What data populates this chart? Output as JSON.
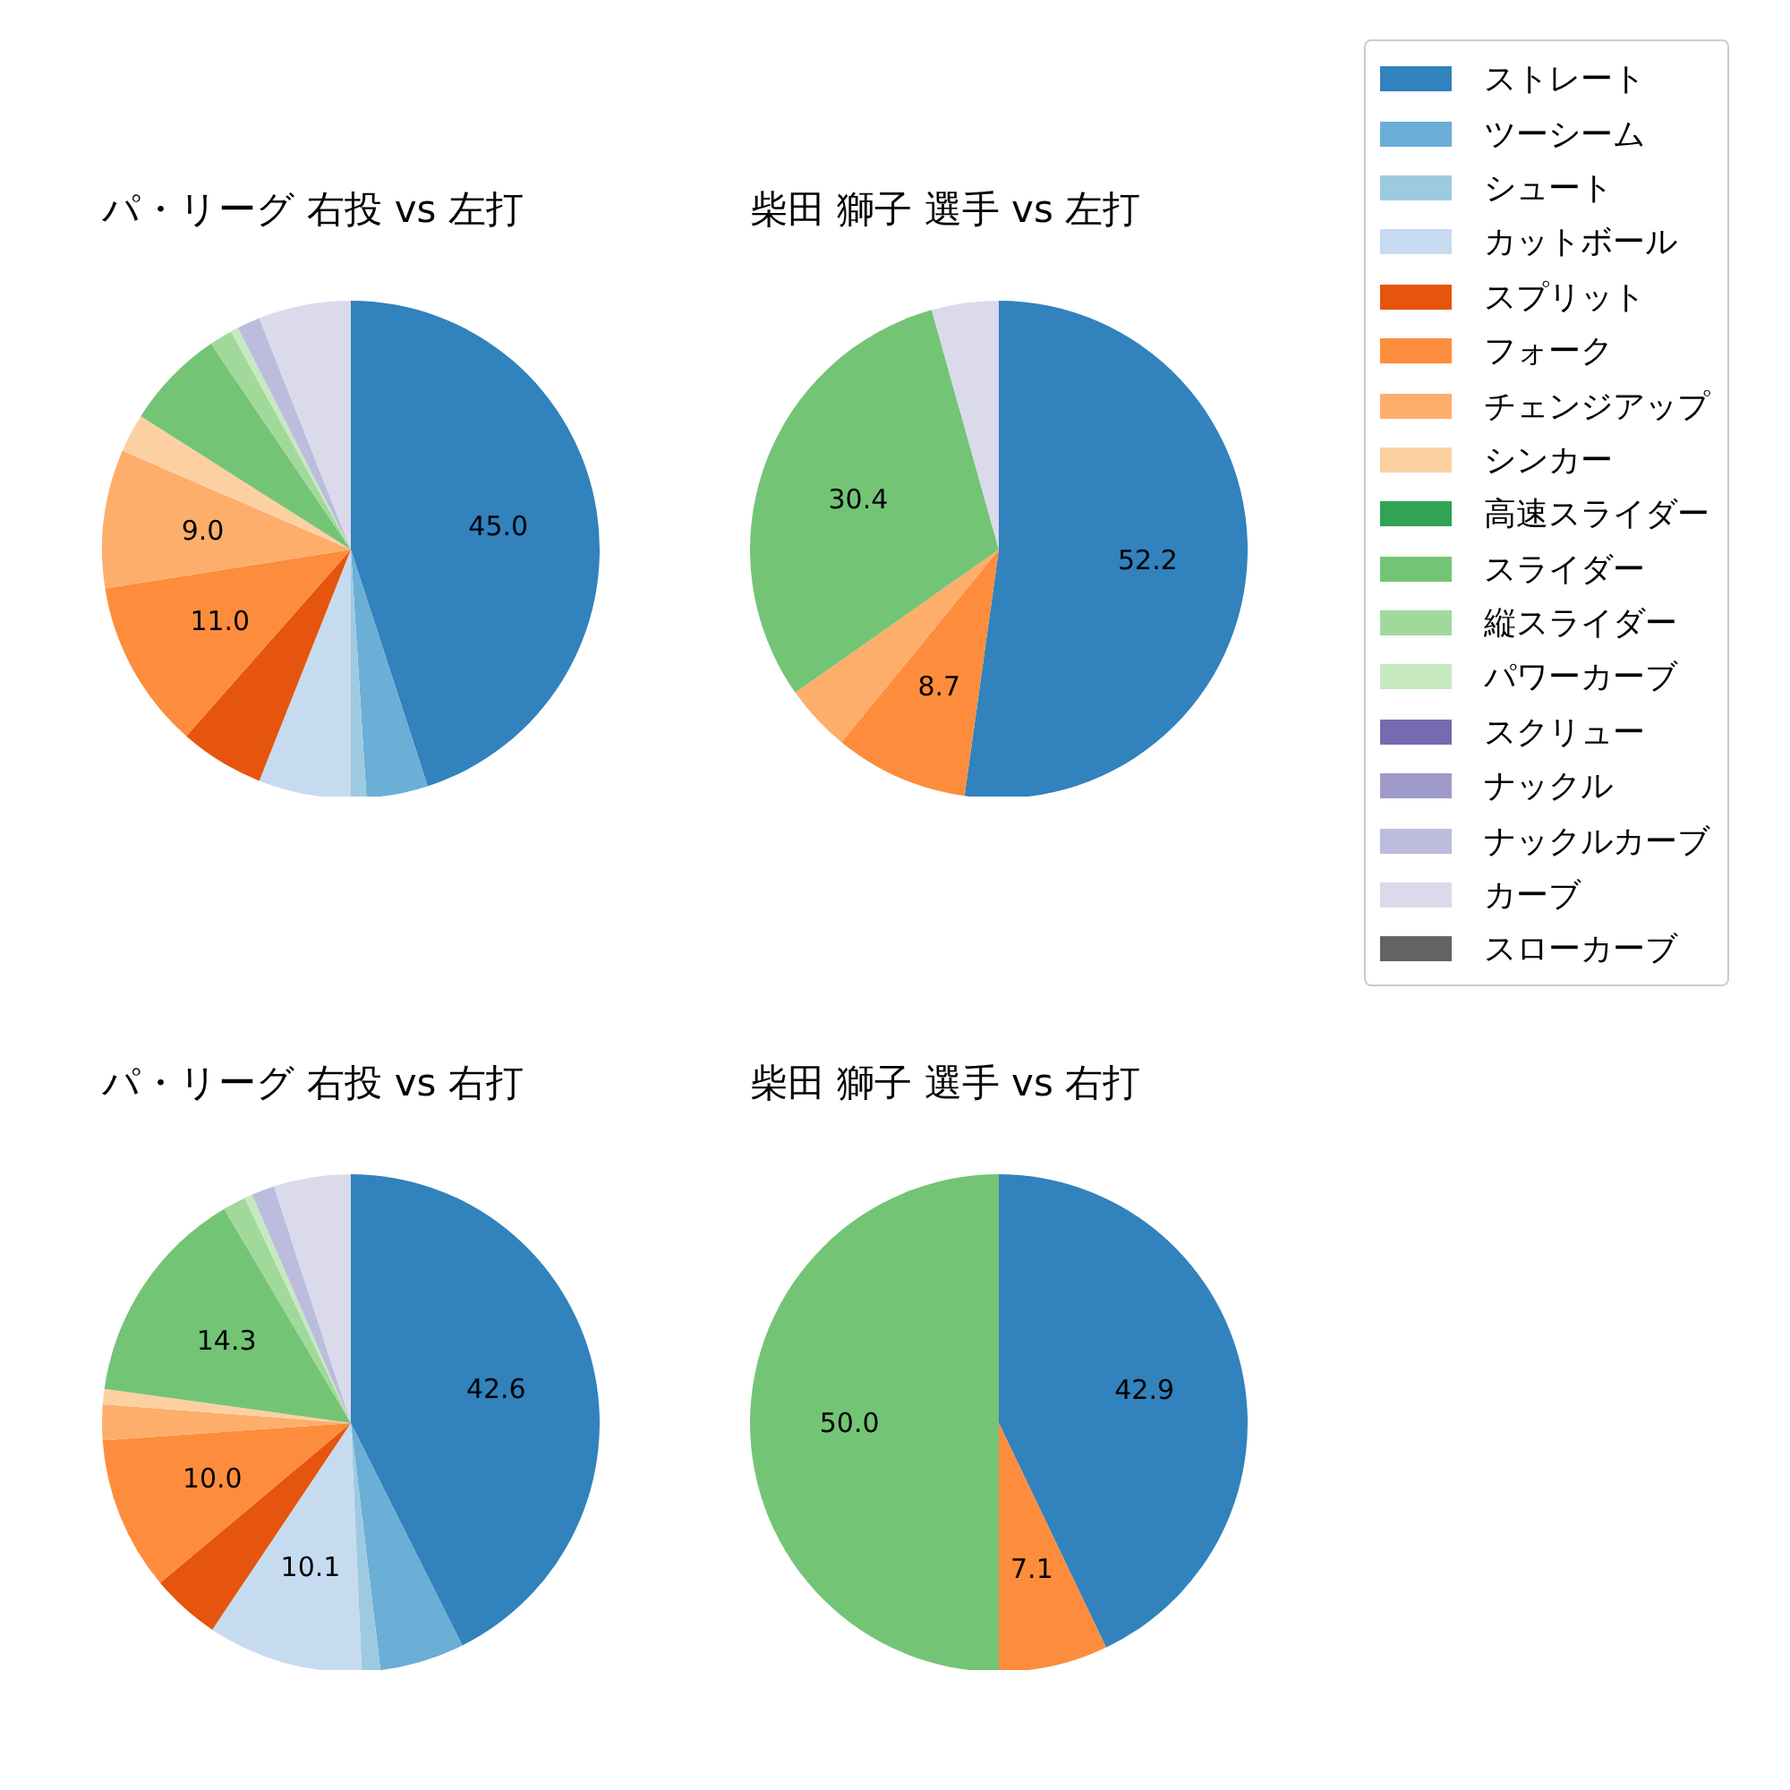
{
  "chart_data": [
    {
      "type": "pie",
      "title": "パ・リーグ 右投 vs 左打",
      "legend": "right",
      "categories": [
        "ストレート",
        "ツーシーム",
        "シュート",
        "カットボール",
        "スプリット",
        "フォーク",
        "チェンジアップ",
        "シンカー",
        "高速スライダー",
        "スライダー",
        "縦スライダー",
        "パワーカーブ",
        "スクリュー",
        "ナックル",
        "ナックルカーブ",
        "カーブ",
        "スローカーブ"
      ],
      "values": [
        45.0,
        4,
        1,
        6,
        5.5,
        11.0,
        9.0,
        2.5,
        null,
        6.5,
        1.5,
        0.5,
        null,
        null,
        1.5,
        6,
        null
      ],
      "value_labels": [
        "45.0",
        null,
        null,
        null,
        null,
        "11.0",
        "9.0",
        null,
        null,
        null,
        null,
        null,
        null,
        null,
        null,
        null,
        null
      ],
      "colors": [
        "#3182bd",
        "#6baed6",
        "#9ecae1",
        "#c6dbef",
        "#e6550d",
        "#fd8d3c",
        "#fdae6b",
        "#fdd0a2",
        "#31a354",
        "#74c476",
        "#a1d99b",
        "#c7e9c0",
        "#756bb1",
        "#9e9ac8",
        "#bcbddc",
        "#dadaeb",
        "#636363"
      ]
    },
    {
      "type": "pie",
      "title": "柴田 獅子 選手 vs 左打",
      "categories": [
        null,
        null,
        null,
        null,
        null
      ],
      "values": [
        52.2,
        8.7,
        4.35,
        30.4,
        4.35
      ],
      "value_labels": [
        "52.2",
        "8.7",
        null,
        "30.4",
        null
      ],
      "colors": [
        "#3182bd",
        "#fd8d3c",
        "#fdae6b",
        "#74c476",
        "#dadaeb"
      ]
    },
    {
      "type": "pie",
      "title": "パ・リーグ 右投 vs 右打",
      "categories": [
        null,
        null,
        null,
        null,
        null,
        null,
        null,
        null,
        null,
        null,
        null,
        null,
        null
      ],
      "values": [
        42.6,
        5.5,
        1.2,
        10.1,
        4.5,
        10.0,
        2.3,
        1.0,
        14.3,
        1.5,
        0.5,
        1.5,
        5.0
      ],
      "value_labels": [
        "42.6",
        null,
        null,
        "10.1",
        null,
        "10.0",
        null,
        null,
        "14.3",
        null,
        null,
        null,
        null
      ],
      "colors": [
        "#3182bd",
        "#6baed6",
        "#9ecae1",
        "#c6dbef",
        "#e6550d",
        "#fd8d3c",
        "#fdae6b",
        "#fdd0a2",
        "#74c476",
        "#a1d99b",
        "#c7e9c0",
        "#bcbddc",
        "#dadaeb"
      ]
    },
    {
      "type": "pie",
      "title": "柴田 獅子 選手 vs 右打",
      "categories": [
        null,
        null,
        null
      ],
      "values": [
        42.9,
        7.1,
        50.0
      ],
      "value_labels": [
        "42.9",
        "7.1",
        "50.0"
      ],
      "colors": [
        "#3182bd",
        "#fd8d3c",
        "#74c476"
      ]
    }
  ]
}
